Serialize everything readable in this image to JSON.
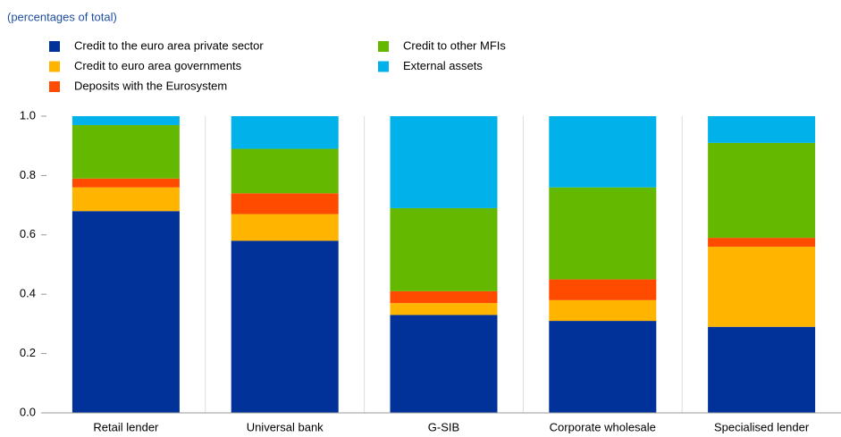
{
  "chart_data": {
    "type": "stacked_bar",
    "subtitle": "(percentages of total)",
    "categories": [
      "Retail lender",
      "Universal bank",
      "G-SIB",
      "Corporate wholesale",
      "Specialised lender"
    ],
    "series": [
      {
        "name": "Credit to the euro area private sector",
        "color": "#003299",
        "values": [
          0.68,
          0.58,
          0.33,
          0.31,
          0.29
        ]
      },
      {
        "name": "Credit to euro area governments",
        "color": "#ffb400",
        "values": [
          0.08,
          0.09,
          0.04,
          0.07,
          0.27
        ]
      },
      {
        "name": "Deposits with the Eurosystem",
        "color": "#ff4b00",
        "values": [
          0.03,
          0.07,
          0.04,
          0.07,
          0.03
        ]
      },
      {
        "name": "Credit to other MFIs",
        "color": "#65b800",
        "values": [
          0.18,
          0.15,
          0.28,
          0.31,
          0.32
        ]
      },
      {
        "name": "External assets",
        "color": "#00b1ea",
        "values": [
          0.03,
          0.11,
          0.31,
          0.24,
          0.09
        ]
      }
    ],
    "ylim": [
      0,
      1
    ],
    "yticks": [
      {
        "value": 0,
        "label": "0.0"
      },
      0.2,
      0.4,
      0.6,
      0.8,
      {
        "value": 1,
        "label": "1.0"
      }
    ]
  }
}
